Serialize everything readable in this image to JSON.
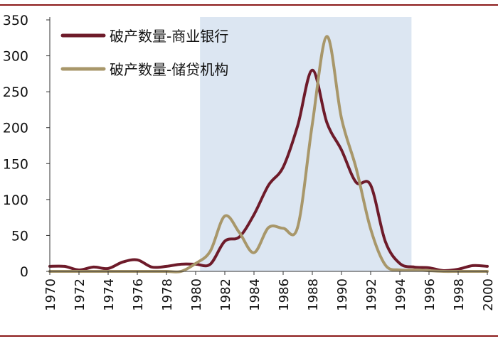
{
  "chart_data": {
    "type": "line",
    "xlim": [
      1970,
      2000
    ],
    "ylim": [
      0,
      350
    ],
    "y_ticks": [
      0,
      50,
      100,
      150,
      200,
      250,
      300,
      350
    ],
    "x_ticks": [
      1970,
      1972,
      1974,
      1976,
      1978,
      1980,
      1982,
      1984,
      1986,
      1988,
      1990,
      1992,
      1994,
      1996,
      1998,
      2000
    ],
    "shaded_region": {
      "x_from": 1980.3,
      "x_to": 1994.8,
      "color": "#dce6f2"
    },
    "grid": false,
    "legend_position": "top-left",
    "series": [
      {
        "name": "破产数量-商业银行",
        "color": "#6e1b2a",
        "x": [
          1970,
          1971,
          1972,
          1973,
          1974,
          1975,
          1976,
          1977,
          1978,
          1979,
          1980,
          1981,
          1982,
          1983,
          1984,
          1985,
          1986,
          1987,
          1988,
          1989,
          1990,
          1991,
          1992,
          1993,
          1994,
          1995,
          1996,
          1997,
          1998,
          1999,
          2000
        ],
        "y": [
          7,
          7,
          2,
          6,
          4,
          13,
          16,
          6,
          7,
          10,
          10,
          10,
          42,
          48,
          79,
          120,
          145,
          203,
          280,
          207,
          169,
          124,
          120,
          42,
          11,
          6,
          5,
          1,
          3,
          8,
          7
        ]
      },
      {
        "name": "破产数量-储贷机构",
        "color": "#a8976a",
        "x": [
          1970,
          1971,
          1972,
          1973,
          1974,
          1975,
          1976,
          1977,
          1978,
          1979,
          1980,
          1981,
          1982,
          1983,
          1984,
          1985,
          1986,
          1987,
          1988,
          1989,
          1990,
          1991,
          1992,
          1993,
          1994,
          1995,
          1996,
          1997,
          1998,
          1999,
          2000
        ],
        "y": [
          0,
          0,
          0,
          0,
          0,
          0,
          0,
          0,
          0,
          0,
          11,
          28,
          77,
          54,
          26,
          61,
          60,
          62,
          205,
          327,
          213,
          144,
          59,
          9,
          2,
          2,
          1,
          0,
          0,
          0,
          0
        ]
      }
    ]
  }
}
